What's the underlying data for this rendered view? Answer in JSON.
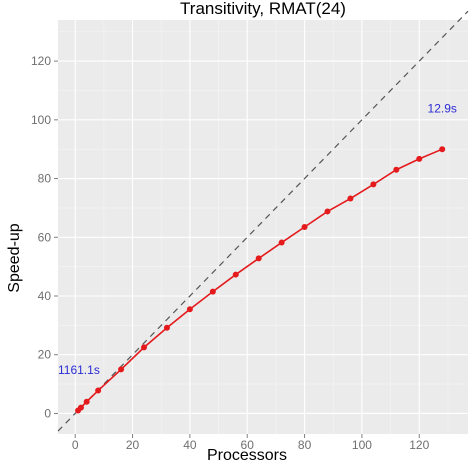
{
  "chart_data": {
    "type": "line",
    "title": "Transitivity, RMAT(24)",
    "xlabel": "Processors",
    "ylabel": "Speed-up",
    "xlim": [
      -6,
      137
    ],
    "ylim": [
      -7,
      134
    ],
    "x_ticks": [
      0,
      20,
      40,
      60,
      80,
      100,
      120
    ],
    "y_ticks": [
      0,
      20,
      40,
      60,
      80,
      100,
      120
    ],
    "grid": true,
    "background_color": "#ebebeb",
    "series": [
      {
        "color": "#e41a1c",
        "x": [
          1,
          2,
          4,
          8,
          16,
          24,
          32,
          40,
          48,
          56,
          64,
          72,
          80,
          88,
          96,
          104,
          112,
          120,
          128
        ],
        "y": [
          1,
          2,
          4,
          7.8,
          15,
          22.5,
          29.2,
          35.5,
          41.5,
          47.3,
          52.8,
          58.2,
          63.5,
          68.8,
          73.2,
          78,
          83,
          86.7,
          90
        ]
      }
    ],
    "reference_line": {
      "style": "dashed",
      "color": "#555555",
      "x": [
        -6,
        137
      ],
      "y": [
        -6,
        137
      ]
    },
    "annotations": [
      {
        "text": "1161.1s",
        "x": -6,
        "y": 13.5,
        "color": "#2b2bd6"
      },
      {
        "text": "12.9s",
        "x": 128,
        "y": 102.5,
        "color": "#2b2bd6"
      }
    ]
  }
}
